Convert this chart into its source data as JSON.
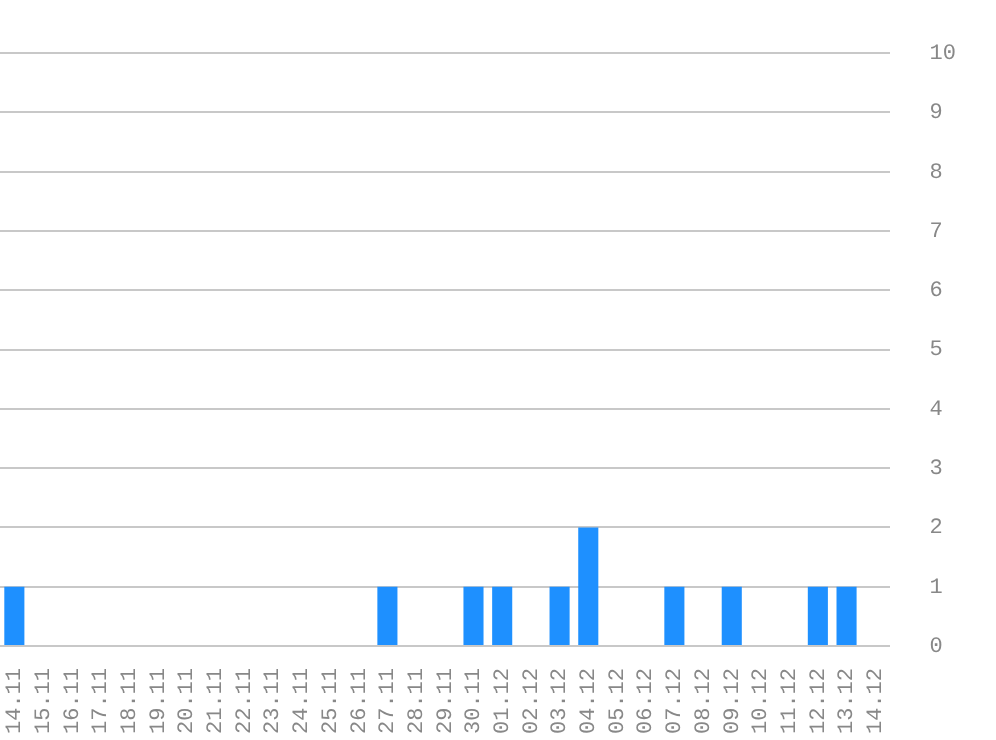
{
  "chart_data": {
    "type": "bar",
    "categories": [
      "14.11",
      "15.11",
      "16.11",
      "17.11",
      "18.11",
      "19.11",
      "20.11",
      "21.11",
      "22.11",
      "23.11",
      "24.11",
      "25.11",
      "26.11",
      "27.11",
      "28.11",
      "29.11",
      "30.11",
      "01.12",
      "02.12",
      "03.12",
      "04.12",
      "05.12",
      "06.12",
      "07.12",
      "08.12",
      "09.12",
      "10.12",
      "11.12",
      "12.12",
      "13.12",
      "14.12"
    ],
    "values": [
      1,
      0,
      0,
      0,
      0,
      0,
      0,
      0,
      0,
      0,
      0,
      0,
      0,
      1,
      0,
      0,
      1,
      1,
      0,
      1,
      2,
      0,
      0,
      1,
      0,
      1,
      0,
      0,
      1,
      1,
      0
    ],
    "color": "#1e90ff",
    "ylim": [
      0,
      10
    ],
    "yticks": [
      0,
      1,
      2,
      3,
      4,
      5,
      6,
      7,
      8,
      9,
      10
    ],
    "grid": "y",
    "legend": false
  }
}
